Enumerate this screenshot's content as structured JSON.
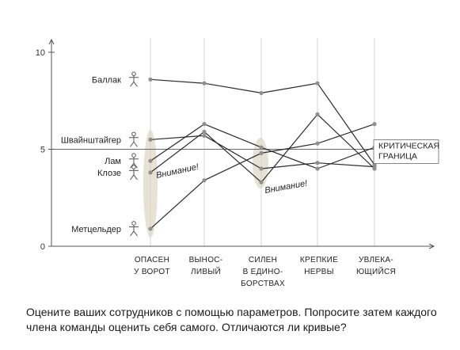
{
  "chart_data": {
    "type": "line",
    "title": "",
    "xlabel": "",
    "ylabel": "",
    "ylim": [
      0,
      10
    ],
    "yticks": [
      "0",
      "5",
      "10"
    ],
    "categories": [
      [
        "ОПАСЕН",
        "У ВОРОТ"
      ],
      [
        "ВЫНОС-",
        "ЛИВЫЙ"
      ],
      [
        "СИЛЕН",
        "В ЕДИНО-",
        "БОРСТВАХ"
      ],
      [
        "КРЕПКИЕ",
        "НЕРВЫ"
      ],
      [
        "УВЛЕКА-",
        "ЮЩИЙСЯ"
      ]
    ],
    "series": [
      {
        "name": "Баллак",
        "values": [
          8.6,
          8.4,
          7.9,
          8.4,
          4.2
        ]
      },
      {
        "name": "Швайнштайгер",
        "values": [
          5.5,
          5.7,
          4.0,
          4.3,
          4.1
        ]
      },
      {
        "name": "Лам",
        "values": [
          4.4,
          6.3,
          5.1,
          4.0,
          5.1
        ]
      },
      {
        "name": "Клозе",
        "values": [
          3.8,
          5.9,
          3.3,
          6.8,
          4.0
        ]
      },
      {
        "name": "Метцельдер",
        "values": [
          0.9,
          3.4,
          4.8,
          5.3,
          6.3
        ]
      }
    ],
    "threshold": {
      "value": 5,
      "label": [
        "КРИТИЧЕСКАЯ",
        "ГРАНИЦА"
      ]
    },
    "annotations": [
      "Внимание!",
      "Внимание!"
    ],
    "grid": false
  },
  "caption": "Оцените ваших сотрудников с помощью параметров. Попросите затем каждого члена команды оценить себя самого. Отличаются ли кривые?",
  "colors": {
    "line": "#2b2b2b",
    "axis": "#555555",
    "point": "#8f8f8f",
    "highlight": "#e8e2d4",
    "threshold": "#6a6a6a"
  },
  "icons": {
    "player": "person-icon"
  }
}
